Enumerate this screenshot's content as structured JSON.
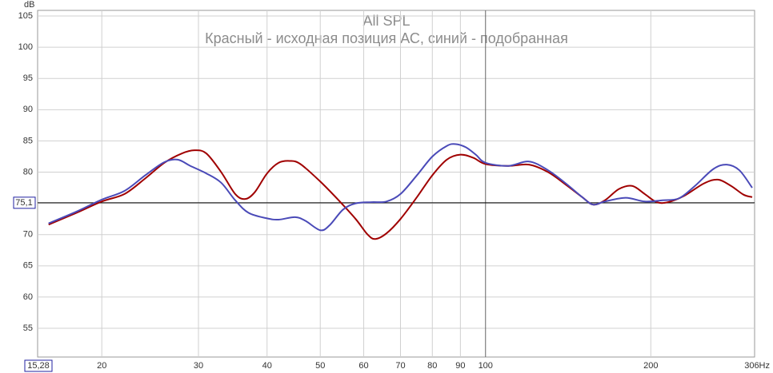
{
  "chart_data": {
    "type": "line",
    "title": "All SPL",
    "subtitle": "Красный  - исходная позиция АС, синий - подобранная",
    "y_label": "dB",
    "x_scale": "log",
    "grid": true,
    "xlim": [
      15.28,
      306
    ],
    "ylim": [
      50.4,
      105.9
    ],
    "xticks": [
      {
        "value": 15.28,
        "label": "15,28"
      },
      20,
      30,
      40,
      50,
      60,
      70,
      80,
      90,
      100,
      200,
      {
        "value": 306,
        "label": "306Hz"
      }
    ],
    "yticks": [
      55,
      60,
      65,
      70,
      75,
      80,
      85,
      90,
      95,
      100,
      105
    ],
    "ref_line": {
      "value": 75.1,
      "label": "75,1"
    },
    "series": [
      {
        "name": "Красный",
        "color": "#a00000",
        "x": [
          16,
          18,
          20,
          22,
          24,
          26,
          28,
          29.5,
          31,
          33,
          35,
          36.5,
          38,
          40,
          42,
          44,
          46,
          50,
          54,
          58,
          61,
          63,
          66,
          70,
          75,
          80,
          85,
          90,
          95,
          100,
          110,
          120,
          130,
          140,
          150,
          157,
          165,
          175,
          185,
          195,
          205,
          215,
          230,
          250,
          265,
          280,
          295,
          306
        ],
        "values": [
          71.6,
          73.5,
          75.3,
          76.5,
          79,
          81.5,
          83,
          83.5,
          83,
          80,
          76.5,
          75.7,
          76.8,
          79.8,
          81.5,
          81.8,
          81.3,
          78.5,
          75.5,
          72.5,
          70,
          69.3,
          70.2,
          72.5,
          76,
          79.5,
          82,
          82.8,
          82.3,
          81.3,
          81,
          81.2,
          80,
          78,
          76,
          74.8,
          75.5,
          77.3,
          77.8,
          76.5,
          75.2,
          75.2,
          76.2,
          78.2,
          78.8,
          77.8,
          76.4,
          76
        ]
      },
      {
        "name": "синий",
        "color": "#4a4ab8",
        "x": [
          16,
          18,
          20,
          22,
          24,
          26,
          27.5,
          29,
          31,
          33,
          35,
          37,
          40,
          42,
          45,
          47,
          50,
          52,
          55,
          58,
          62,
          66,
          70,
          75,
          80,
          85,
          88,
          92,
          96,
          100,
          110,
          120,
          130,
          140,
          150,
          157,
          165,
          180,
          195,
          210,
          225,
          240,
          260,
          275,
          290,
          306
        ],
        "values": [
          71.8,
          73.7,
          75.6,
          77,
          79.5,
          81.6,
          82,
          81,
          79.8,
          78.3,
          75.5,
          73.5,
          72.6,
          72.4,
          72.8,
          72.2,
          70.7,
          71.5,
          74,
          75,
          75.2,
          75.3,
          76.5,
          79.5,
          82.5,
          84.2,
          84.5,
          84,
          82.8,
          81.5,
          81,
          81.7,
          80.3,
          78.2,
          76,
          74.8,
          75.3,
          75.9,
          75.3,
          75.5,
          75.8,
          77.7,
          80.5,
          81.2,
          80.3,
          77.5
        ]
      }
    ]
  }
}
